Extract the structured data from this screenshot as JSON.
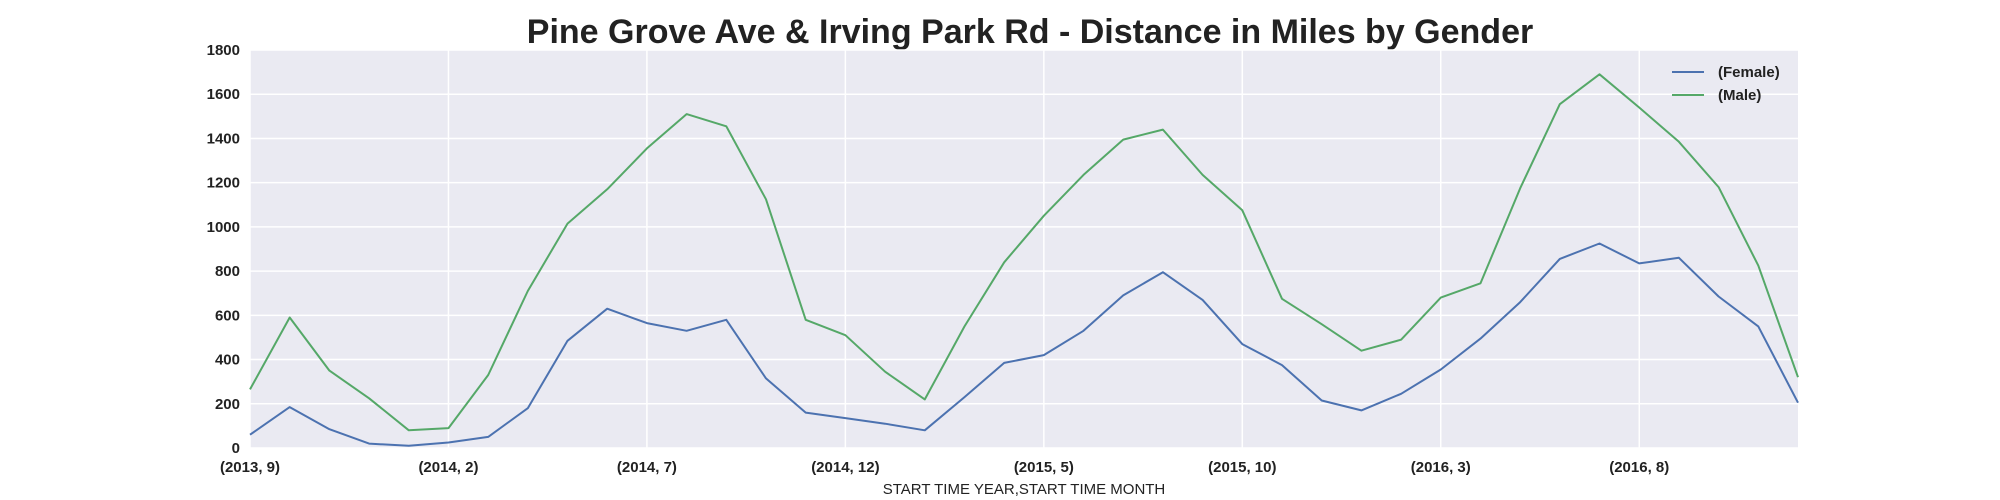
{
  "chart_data": {
    "type": "line",
    "title": "Pine Grove Ave & Irving Park Rd - Distance in Miles by Gender",
    "xlabel": "START TIME YEAR,START TIME MONTH",
    "ylabel": "",
    "ylim": [
      0,
      1800
    ],
    "yticks": [
      0,
      200,
      400,
      600,
      800,
      1000,
      1200,
      1400,
      1600,
      1800
    ],
    "xticks": [
      {
        "index": 0,
        "label": "(2013, 9)"
      },
      {
        "index": 5,
        "label": "(2014, 2)"
      },
      {
        "index": 10,
        "label": "(2014, 7)"
      },
      {
        "index": 15,
        "label": "(2014, 12)"
      },
      {
        "index": 20,
        "label": "(2015, 5)"
      },
      {
        "index": 25,
        "label": "(2015, 10)"
      },
      {
        "index": 30,
        "label": "(2016, 3)"
      },
      {
        "index": 35,
        "label": "(2016, 8)"
      }
    ],
    "x": [
      "(2013, 9)",
      "(2013, 10)",
      "(2013, 11)",
      "(2013, 12)",
      "(2014, 1)",
      "(2014, 2)",
      "(2014, 3)",
      "(2014, 4)",
      "(2014, 5)",
      "(2014, 6)",
      "(2014, 7)",
      "(2014, 8)",
      "(2014, 9)",
      "(2014, 10)",
      "(2014, 11)",
      "(2014, 12)",
      "(2015, 1)",
      "(2015, 2)",
      "(2015, 3)",
      "(2015, 4)",
      "(2015, 5)",
      "(2015, 6)",
      "(2015, 7)",
      "(2015, 8)",
      "(2015, 9)",
      "(2015, 10)",
      "(2015, 11)",
      "(2015, 12)",
      "(2016, 1)",
      "(2016, 2)",
      "(2016, 3)",
      "(2016, 4)",
      "(2016, 5)",
      "(2016, 6)",
      "(2016, 7)",
      "(2016, 8)",
      "(2016, 9)",
      "(2016, 10)",
      "(2016, 11)",
      "(2016, 12)"
    ],
    "series": [
      {
        "name": "(Female)",
        "color": "#4c72b0",
        "values": [
          60,
          185,
          85,
          20,
          10,
          25,
          50,
          180,
          485,
          630,
          565,
          530,
          580,
          315,
          160,
          135,
          110,
          80,
          230,
          385,
          420,
          530,
          690,
          795,
          670,
          470,
          375,
          215,
          170,
          245,
          355,
          495,
          660,
          855,
          925,
          835,
          860,
          685,
          550,
          205
        ]
      },
      {
        "name": "(Male)",
        "color": "#55a868",
        "values": [
          265,
          590,
          350,
          225,
          80,
          90,
          330,
          710,
          1015,
          1170,
          1355,
          1510,
          1455,
          1125,
          580,
          510,
          345,
          220,
          550,
          840,
          1050,
          1235,
          1395,
          1440,
          1235,
          1075,
          675,
          560,
          440,
          490,
          680,
          745,
          1175,
          1555,
          1690,
          1540,
          1385,
          1180,
          825,
          320
        ]
      }
    ],
    "grid": true,
    "background": "#eaeaf2",
    "legend_position": "top-right"
  }
}
